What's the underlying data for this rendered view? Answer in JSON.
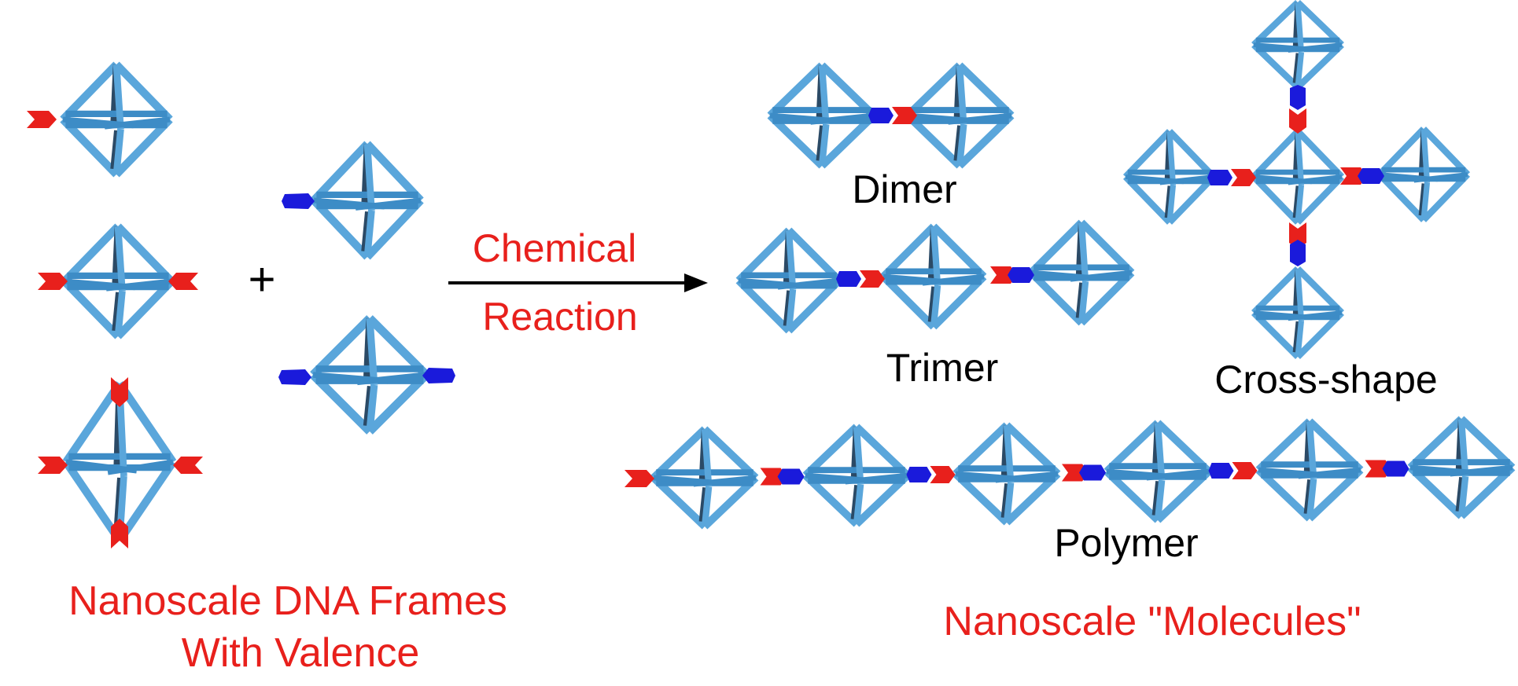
{
  "labels": {
    "reaction_line1": "Chemical",
    "reaction_line2": "Reaction",
    "plus": "+",
    "dimer": "Dimer",
    "trimer": "Trimer",
    "cross": "Cross-shape",
    "polymer": "Polymer",
    "frames_line1": "Nanoscale DNA Frames",
    "frames_line2": "With Valence",
    "molecules": "Nanoscale \"Molecules\""
  },
  "colors": {
    "frame_light": "#5aa6db",
    "frame_mid": "#3d8cc6",
    "frame_dark": "#2b4a66",
    "linker_red": "#e8201c",
    "linker_blue": "#1a1adb",
    "text_red": "#e8201c",
    "text_black": "#000000"
  }
}
